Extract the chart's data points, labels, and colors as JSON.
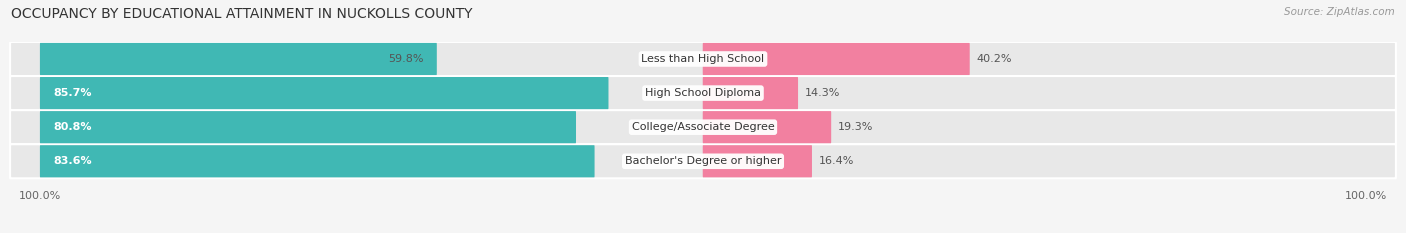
{
  "title": "OCCUPANCY BY EDUCATIONAL ATTAINMENT IN NUCKOLLS COUNTY",
  "source": "Source: ZipAtlas.com",
  "categories": [
    "Less than High School",
    "High School Diploma",
    "College/Associate Degree",
    "Bachelor's Degree or higher"
  ],
  "owner_pct": [
    59.8,
    85.7,
    80.8,
    83.6
  ],
  "renter_pct": [
    40.2,
    14.3,
    19.3,
    16.4
  ],
  "owner_color": "#40b8b4",
  "renter_color": "#f280a0",
  "pill_bg_color": "#e8e8e8",
  "row_bg_color": "#f5f5f5",
  "fig_bg_color": "#f5f5f5",
  "title_fontsize": 10,
  "label_fontsize": 8,
  "pct_fontsize": 8,
  "axis_label_fontsize": 8,
  "legend_fontsize": 8.5,
  "source_fontsize": 7.5
}
